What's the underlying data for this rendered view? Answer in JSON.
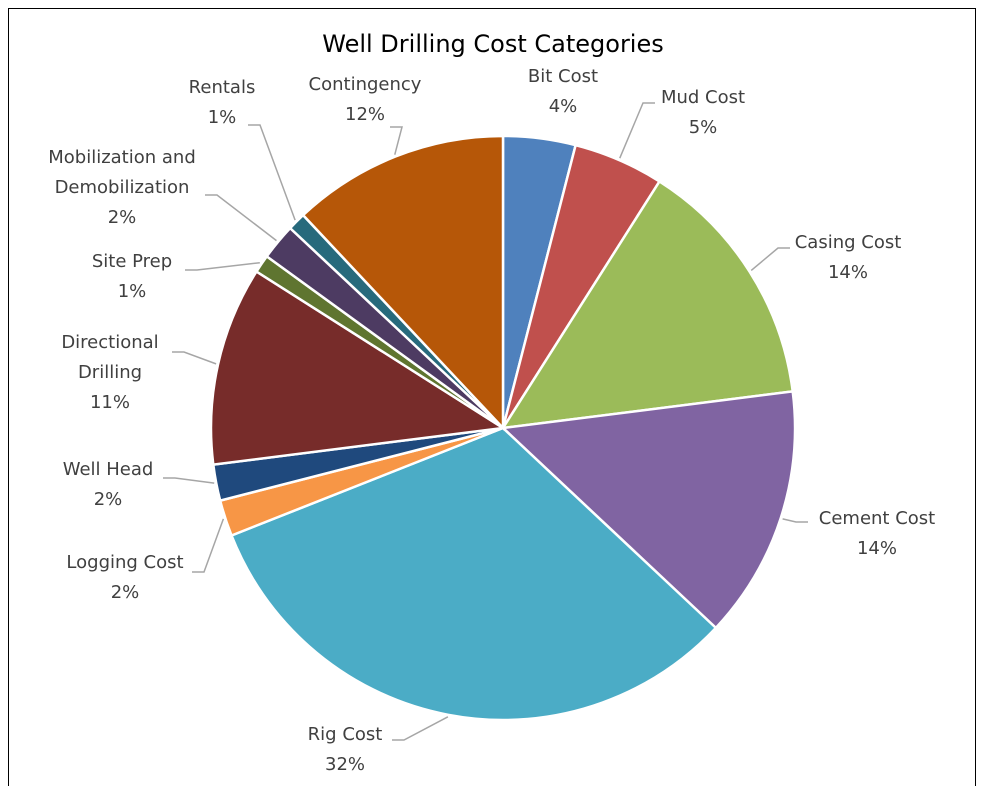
{
  "chart_data": {
    "type": "pie",
    "title": "Well Drilling Cost Categories",
    "categories": [
      "Bit Cost",
      "Mud Cost",
      "Casing Cost",
      "Cement Cost",
      "Rig Cost",
      "Logging Cost",
      "Well Head",
      "Directional Drilling",
      "Site Prep",
      "Mobilization and Demobilization",
      "Rentals",
      "Contingency"
    ],
    "values": [
      4,
      5,
      14,
      14,
      32,
      2,
      2,
      11,
      1,
      2,
      1,
      12
    ],
    "value_labels": [
      "4%",
      "5%",
      "14%",
      "14%",
      "32%",
      "2%",
      "2%",
      "11%",
      "1%",
      "2%",
      "1%",
      "12%"
    ],
    "colors": [
      "#4f81bd",
      "#c0504d",
      "#9bbb59",
      "#8064a2",
      "#4bacc6",
      "#f79646",
      "#1f497d",
      "#772c2a",
      "#5f7530",
      "#4d3b62",
      "#276a7c",
      "#b65708"
    ]
  }
}
